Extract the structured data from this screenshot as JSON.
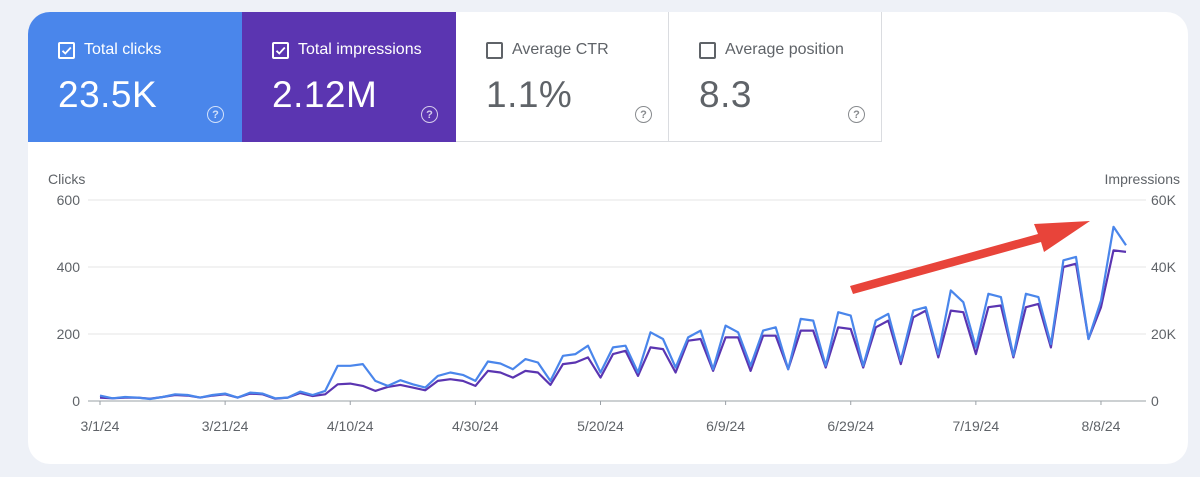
{
  "tiles": [
    {
      "label": "Total clicks",
      "value": "23.5K",
      "checked": true
    },
    {
      "label": "Total impressions",
      "value": "2.12M",
      "checked": true
    },
    {
      "label": "Average CTR",
      "value": "1.1%",
      "checked": false
    },
    {
      "label": "Average position",
      "value": "8.3",
      "checked": false
    }
  ],
  "help_glyph": "?",
  "colors": {
    "clicks": "#4a86eb",
    "impressions": "#5b35b1",
    "arrow": "#e8443a"
  },
  "chart_data": {
    "type": "line",
    "y_left_label": "Clicks",
    "y_right_label": "Impressions",
    "y_left_ticks": [
      "0",
      "200",
      "400",
      "600"
    ],
    "y_right_ticks": [
      "0",
      "20K",
      "40K",
      "60K"
    ],
    "y_left_range": [
      0,
      600
    ],
    "y_right_range": [
      0,
      60000
    ],
    "x_range": [
      "2024-03-01",
      "2024-08-12"
    ],
    "x_ticks": [
      "3/1/24",
      "3/21/24",
      "4/10/24",
      "4/30/24",
      "5/20/24",
      "6/9/24",
      "6/29/24",
      "7/19/24",
      "8/8/24"
    ],
    "grid": true,
    "annotation": "red arrow pointing up-right toward recent peak",
    "series": [
      {
        "name": "Clicks",
        "axis": "left",
        "points": [
          [
            "2024-03-01",
            16
          ],
          [
            "2024-03-03",
            8
          ],
          [
            "2024-03-05",
            12
          ],
          [
            "2024-03-07",
            10
          ],
          [
            "2024-03-09",
            6
          ],
          [
            "2024-03-11",
            12
          ],
          [
            "2024-03-13",
            20
          ],
          [
            "2024-03-15",
            18
          ],
          [
            "2024-03-17",
            10
          ],
          [
            "2024-03-19",
            18
          ],
          [
            "2024-03-21",
            22
          ],
          [
            "2024-03-23",
            10
          ],
          [
            "2024-03-25",
            25
          ],
          [
            "2024-03-27",
            22
          ],
          [
            "2024-03-29",
            8
          ],
          [
            "2024-03-31",
            10
          ],
          [
            "2024-04-02",
            28
          ],
          [
            "2024-04-04",
            18
          ],
          [
            "2024-04-06",
            30
          ],
          [
            "2024-04-08",
            105
          ],
          [
            "2024-04-10",
            105
          ],
          [
            "2024-04-12",
            110
          ],
          [
            "2024-04-14",
            60
          ],
          [
            "2024-04-16",
            45
          ],
          [
            "2024-04-18",
            62
          ],
          [
            "2024-04-20",
            50
          ],
          [
            "2024-04-22",
            40
          ],
          [
            "2024-04-24",
            75
          ],
          [
            "2024-04-26",
            85
          ],
          [
            "2024-04-28",
            78
          ],
          [
            "2024-04-30",
            60
          ],
          [
            "2024-05-02",
            118
          ],
          [
            "2024-05-04",
            112
          ],
          [
            "2024-05-06",
            95
          ],
          [
            "2024-05-08",
            125
          ],
          [
            "2024-05-10",
            115
          ],
          [
            "2024-05-12",
            60
          ],
          [
            "2024-05-14",
            135
          ],
          [
            "2024-05-16",
            140
          ],
          [
            "2024-05-18",
            165
          ],
          [
            "2024-05-20",
            85
          ],
          [
            "2024-05-22",
            160
          ],
          [
            "2024-05-24",
            165
          ],
          [
            "2024-05-26",
            85
          ],
          [
            "2024-05-28",
            205
          ],
          [
            "2024-05-30",
            185
          ],
          [
            "2024-06-01",
            100
          ],
          [
            "2024-06-03",
            190
          ],
          [
            "2024-06-05",
            210
          ],
          [
            "2024-06-07",
            95
          ],
          [
            "2024-06-09",
            225
          ],
          [
            "2024-06-11",
            205
          ],
          [
            "2024-06-13",
            105
          ],
          [
            "2024-06-15",
            210
          ],
          [
            "2024-06-17",
            220
          ],
          [
            "2024-06-19",
            95
          ],
          [
            "2024-06-21",
            245
          ],
          [
            "2024-06-23",
            240
          ],
          [
            "2024-06-25",
            105
          ],
          [
            "2024-06-27",
            265
          ],
          [
            "2024-06-29",
            255
          ],
          [
            "2024-07-01",
            105
          ],
          [
            "2024-07-03",
            240
          ],
          [
            "2024-07-05",
            260
          ],
          [
            "2024-07-07",
            120
          ],
          [
            "2024-07-09",
            270
          ],
          [
            "2024-07-11",
            280
          ],
          [
            "2024-07-13",
            140
          ],
          [
            "2024-07-15",
            330
          ],
          [
            "2024-07-17",
            295
          ],
          [
            "2024-07-19",
            160
          ],
          [
            "2024-07-21",
            320
          ],
          [
            "2024-07-23",
            310
          ],
          [
            "2024-07-25",
            135
          ],
          [
            "2024-07-27",
            320
          ],
          [
            "2024-07-29",
            310
          ],
          [
            "2024-07-31",
            170
          ],
          [
            "2024-08-02",
            420
          ],
          [
            "2024-08-04",
            430
          ],
          [
            "2024-08-06",
            185
          ],
          [
            "2024-08-08",
            300
          ],
          [
            "2024-08-10",
            520
          ],
          [
            "2024-08-12",
            465
          ]
        ]
      },
      {
        "name": "Impressions",
        "axis": "right",
        "points": [
          [
            "2024-03-01",
            1000
          ],
          [
            "2024-03-03",
            800
          ],
          [
            "2024-03-05",
            1000
          ],
          [
            "2024-03-07",
            1000
          ],
          [
            "2024-03-09",
            700
          ],
          [
            "2024-03-11",
            1200
          ],
          [
            "2024-03-13",
            1800
          ],
          [
            "2024-03-15",
            1600
          ],
          [
            "2024-03-17",
            1000
          ],
          [
            "2024-03-19",
            1600
          ],
          [
            "2024-03-21",
            2000
          ],
          [
            "2024-03-23",
            1000
          ],
          [
            "2024-03-25",
            2200
          ],
          [
            "2024-03-27",
            2000
          ],
          [
            "2024-03-29",
            700
          ],
          [
            "2024-03-31",
            1000
          ],
          [
            "2024-04-02",
            2400
          ],
          [
            "2024-04-04",
            1500
          ],
          [
            "2024-04-06",
            2000
          ],
          [
            "2024-04-08",
            5000
          ],
          [
            "2024-04-10",
            5200
          ],
          [
            "2024-04-12",
            4500
          ],
          [
            "2024-04-14",
            3000
          ],
          [
            "2024-04-16",
            4200
          ],
          [
            "2024-04-18",
            4800
          ],
          [
            "2024-04-20",
            4000
          ],
          [
            "2024-04-22",
            3200
          ],
          [
            "2024-04-24",
            6000
          ],
          [
            "2024-04-26",
            6500
          ],
          [
            "2024-04-28",
            6000
          ],
          [
            "2024-04-30",
            4500
          ],
          [
            "2024-05-02",
            9000
          ],
          [
            "2024-05-04",
            8500
          ],
          [
            "2024-05-06",
            7000
          ],
          [
            "2024-05-08",
            9000
          ],
          [
            "2024-05-10",
            8500
          ],
          [
            "2024-05-12",
            4800
          ],
          [
            "2024-05-14",
            11000
          ],
          [
            "2024-05-16",
            11500
          ],
          [
            "2024-05-18",
            13000
          ],
          [
            "2024-05-20",
            7000
          ],
          [
            "2024-05-22",
            14000
          ],
          [
            "2024-05-24",
            15000
          ],
          [
            "2024-05-26",
            7500
          ],
          [
            "2024-05-28",
            16000
          ],
          [
            "2024-05-30",
            15500
          ],
          [
            "2024-06-01",
            8500
          ],
          [
            "2024-06-03",
            18000
          ],
          [
            "2024-06-05",
            18500
          ],
          [
            "2024-06-07",
            9000
          ],
          [
            "2024-06-09",
            19000
          ],
          [
            "2024-06-11",
            19000
          ],
          [
            "2024-06-13",
            9000
          ],
          [
            "2024-06-15",
            19500
          ],
          [
            "2024-06-17",
            19500
          ],
          [
            "2024-06-19",
            9500
          ],
          [
            "2024-06-21",
            21000
          ],
          [
            "2024-06-23",
            21000
          ],
          [
            "2024-06-25",
            10000
          ],
          [
            "2024-06-27",
            22000
          ],
          [
            "2024-06-29",
            21500
          ],
          [
            "2024-07-01",
            10000
          ],
          [
            "2024-07-03",
            22000
          ],
          [
            "2024-07-05",
            24000
          ],
          [
            "2024-07-07",
            11000
          ],
          [
            "2024-07-09",
            25000
          ],
          [
            "2024-07-11",
            27000
          ],
          [
            "2024-07-13",
            13000
          ],
          [
            "2024-07-15",
            27000
          ],
          [
            "2024-07-17",
            26500
          ],
          [
            "2024-07-19",
            14000
          ],
          [
            "2024-07-21",
            28000
          ],
          [
            "2024-07-23",
            28500
          ],
          [
            "2024-07-25",
            13000
          ],
          [
            "2024-07-27",
            28000
          ],
          [
            "2024-07-29",
            29000
          ],
          [
            "2024-07-31",
            16000
          ],
          [
            "2024-08-02",
            40000
          ],
          [
            "2024-08-04",
            41000
          ],
          [
            "2024-08-06",
            18500
          ],
          [
            "2024-08-08",
            28000
          ],
          [
            "2024-08-10",
            45000
          ],
          [
            "2024-08-12",
            44500
          ]
        ]
      }
    ]
  }
}
